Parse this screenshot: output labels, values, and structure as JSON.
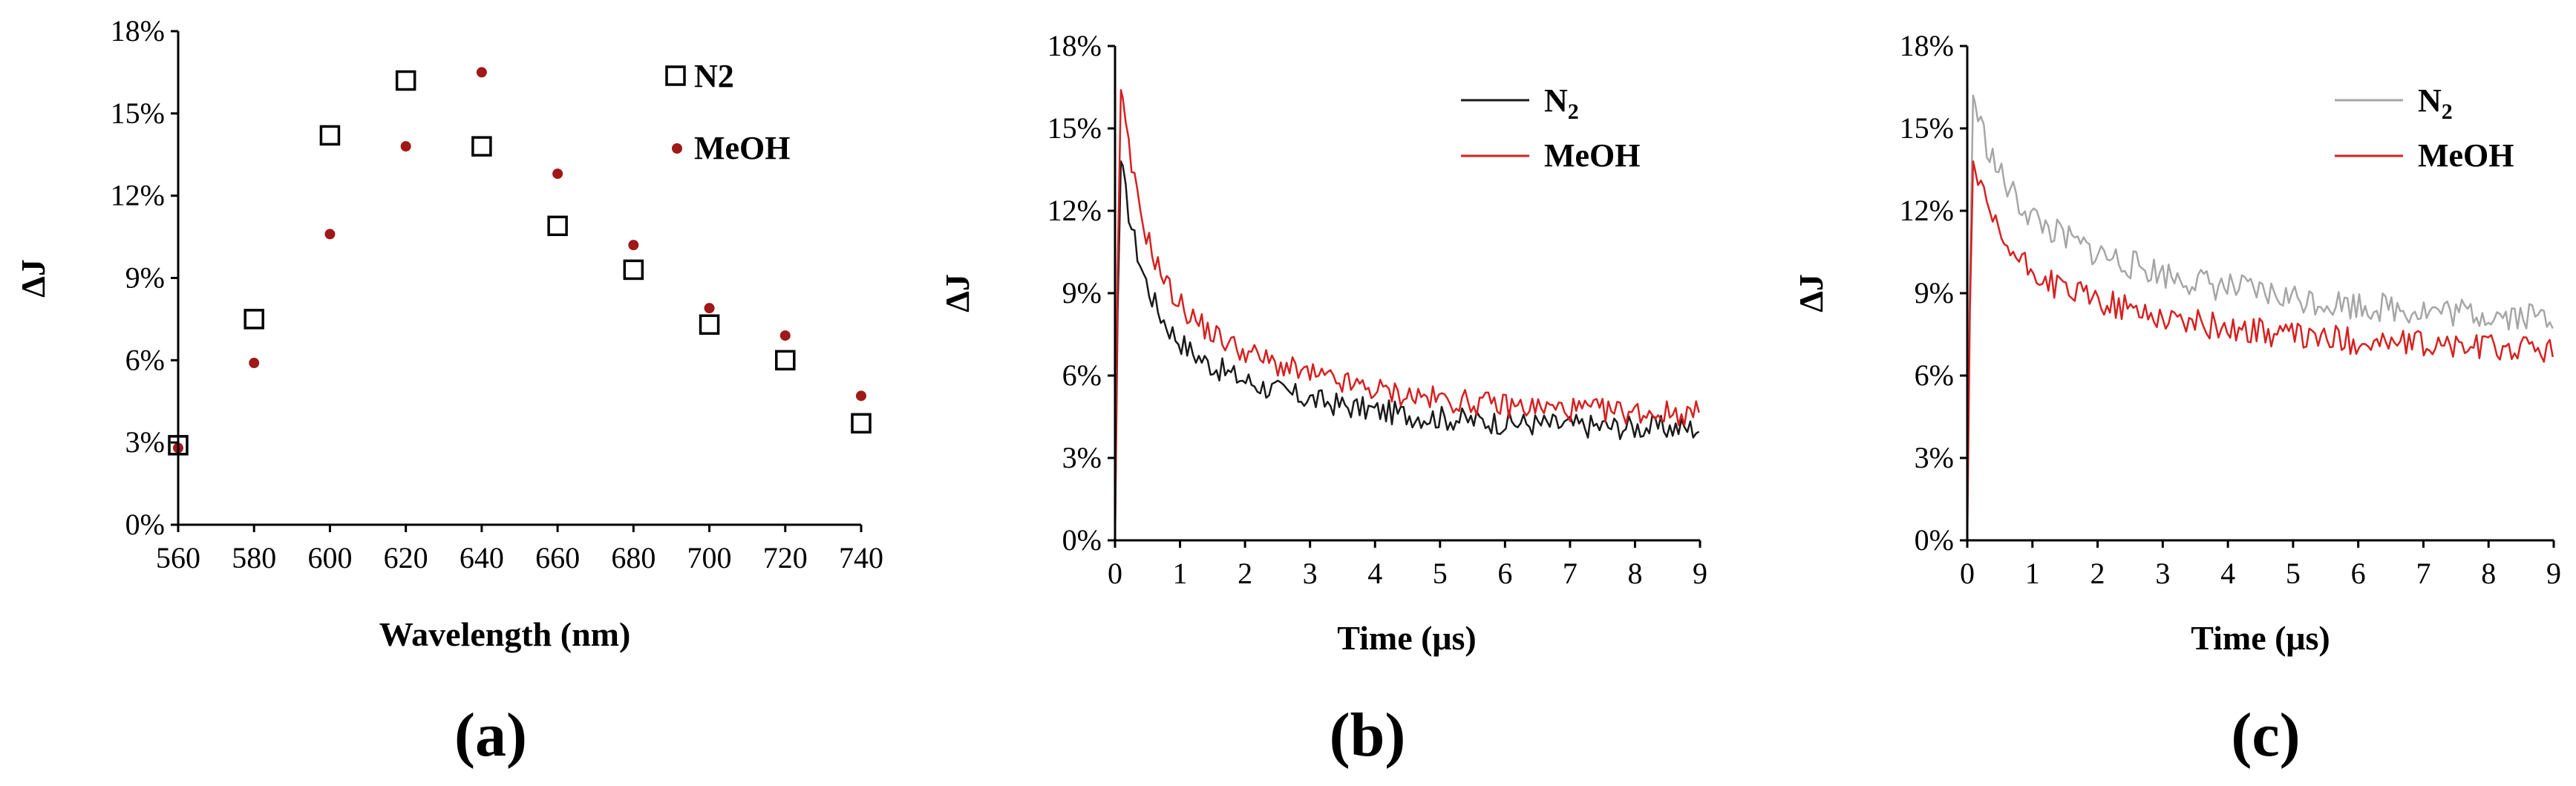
{
  "colors": {
    "n2_b": "#1a1a1a",
    "n2_c": "#a6a6a6",
    "meoh": "#d62020",
    "meoh_marker": "#a01818",
    "axis": "#000000"
  },
  "chart_data": [
    {
      "id": "a",
      "panel_label": "(a)",
      "type": "scatter",
      "xlabel": "Wavelength (nm)",
      "ylabel": "ΔJ",
      "xlim": [
        560,
        740
      ],
      "ylim": [
        0,
        18
      ],
      "xticks": [
        "560",
        "580",
        "600",
        "620",
        "640",
        "660",
        "680",
        "700",
        "720",
        "740"
      ],
      "yticks": [
        "0%",
        "3%",
        "6%",
        "9%",
        "12%",
        "15%",
        "18%"
      ],
      "legend_position": "top-right",
      "series": [
        {
          "name": "N2",
          "marker": "open-square",
          "x": [
            560,
            580,
            600,
            620,
            640,
            660,
            680,
            700,
            720,
            740
          ],
          "y": [
            2.9,
            7.5,
            14.2,
            16.2,
            13.8,
            10.9,
            9.3,
            7.3,
            6.0,
            3.7
          ]
        },
        {
          "name": "MeOH",
          "marker": "filled-circle",
          "x": [
            560,
            580,
            600,
            620,
            640,
            660,
            680,
            700,
            720,
            740
          ],
          "y": [
            2.8,
            5.9,
            10.6,
            13.8,
            16.5,
            12.8,
            10.2,
            7.9,
            6.9,
            4.7
          ]
        }
      ]
    },
    {
      "id": "b",
      "panel_label": "(b)",
      "type": "line",
      "xlabel": "Time (μs)",
      "ylabel": "ΔJ",
      "xlim": [
        0,
        9
      ],
      "ylim": [
        0,
        18
      ],
      "xticks": [
        "0",
        "1",
        "2",
        "3",
        "4",
        "5",
        "6",
        "7",
        "8",
        "9"
      ],
      "yticks": [
        "0%",
        "3%",
        "6%",
        "9%",
        "12%",
        "15%",
        "18%"
      ],
      "legend_position": "top-right",
      "series": [
        {
          "name": "N",
          "subscript": "2",
          "peak": 13.8,
          "plateau": 4.0,
          "amp_fast": 5.5,
          "tau_fast": 0.35,
          "tau_slow": 2.2,
          "noise": 0.45
        },
        {
          "name": "MeOH",
          "subscript": "",
          "peak": 16.4,
          "plateau": 4.5,
          "amp_fast": 6.5,
          "tau_fast": 0.35,
          "tau_slow": 2.3,
          "noise": 0.45
        }
      ]
    },
    {
      "id": "c",
      "panel_label": "(c)",
      "type": "line",
      "xlabel": "Time (μs)",
      "ylabel": "ΔJ",
      "xlim": [
        0,
        9
      ],
      "ylim": [
        0,
        18
      ],
      "xticks": [
        "0",
        "1",
        "2",
        "3",
        "4",
        "5",
        "6",
        "7",
        "8",
        "9"
      ],
      "yticks": [
        "0%",
        "3%",
        "6%",
        "9%",
        "12%",
        "15%",
        "18%"
      ],
      "legend_position": "top-right",
      "series": [
        {
          "name": "N",
          "subscript": "2",
          "peak": 16.2,
          "plateau": 7.9,
          "amp_fast": 3.5,
          "tau_fast": 0.4,
          "tau_slow": 3.0,
          "noise": 0.55
        },
        {
          "name": "MeOH",
          "subscript": "",
          "peak": 13.8,
          "plateau": 6.8,
          "amp_fast": 3.2,
          "tau_fast": 0.35,
          "tau_slow": 2.8,
          "noise": 0.5
        }
      ]
    }
  ]
}
